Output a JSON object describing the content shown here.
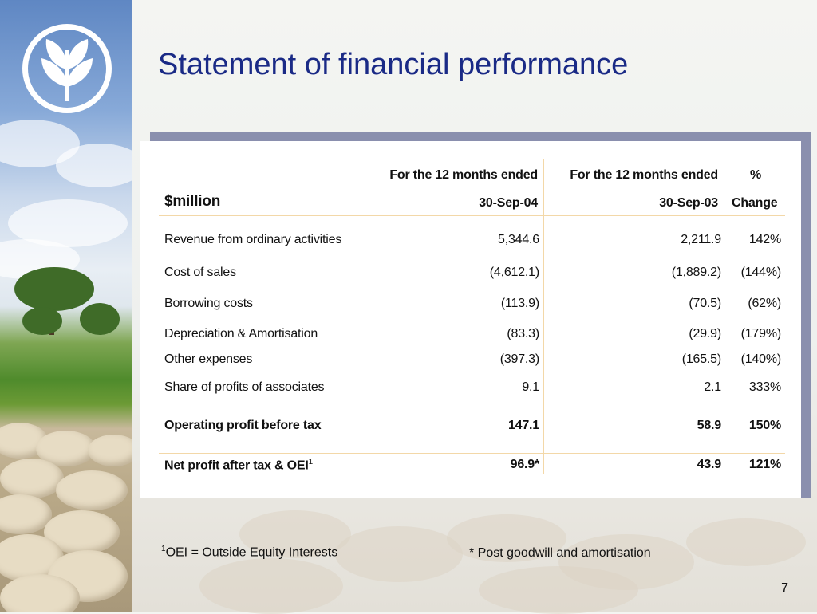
{
  "title": "Statement of financial performance",
  "table": {
    "header": {
      "unit_label": "$million",
      "col1_line1": "For the 12 months ended",
      "col1_line2": "30-Sep-04",
      "col2_line1": "For the 12 months ended",
      "col2_line2": "30-Sep-03",
      "col3_line1": "%",
      "col3_line2": "Change"
    },
    "rows": [
      {
        "label": "Revenue from ordinary activities",
        "v2004": "5,344.6",
        "v2003": "2,211.9",
        "change": "142%"
      },
      {
        "label": "Cost of sales",
        "v2004": "(4,612.1)",
        "v2003": "(1,889.2)",
        "change": "(144%)"
      },
      {
        "label": "Borrowing costs",
        "v2004": "(113.9)",
        "v2003": "(70.5)",
        "change": "(62%)"
      },
      {
        "label": "Depreciation & Amortisation",
        "v2004": "(83.3)",
        "v2003": "(29.9)",
        "change": "(179%)"
      },
      {
        "label": "Other expenses",
        "v2004": "(397.3)",
        "v2003": "(165.5)",
        "change": "(140%)"
      },
      {
        "label": "Share of profits of associates",
        "v2004": "9.1",
        "v2003": "2.1",
        "change": "333%"
      }
    ],
    "operating_profit": {
      "label": "Operating profit before tax",
      "v2004": "147.1",
      "v2003": "58.9",
      "change": "150%"
    },
    "net_profit": {
      "label": "Net profit after tax & OEI",
      "label_sup": "1",
      "v2004": "96.9*",
      "v2003": "43.9",
      "change": "121%"
    }
  },
  "footnotes": {
    "oei_sup": "1",
    "oei_text": "OEI = Outside Equity Interests",
    "asterisk_text": "* Post goodwill and amortisation"
  },
  "page_number": "7",
  "colors": {
    "title": "#1a2a86",
    "rule": "#f3d8a8",
    "shadow": "#8a8fae"
  },
  "icons": {
    "logo": "wheat-emblem-logo"
  }
}
